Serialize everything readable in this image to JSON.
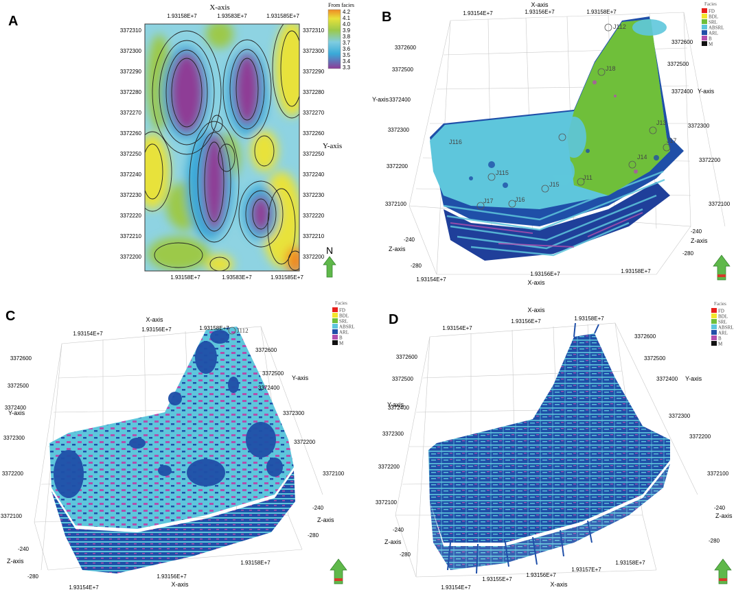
{
  "panels": {
    "A": {
      "label": "A",
      "x_axis_title": "X-axis",
      "y_axis_title": "Y-axis",
      "x_ticks": [
        "1.93158E+7",
        "1.93583E+7",
        "1.931585E+7"
      ],
      "y_ticks": [
        "3372310",
        "3372300",
        "3372290",
        "3372280",
        "3372270",
        "3372260",
        "3372250",
        "3372240",
        "3372230",
        "3372220",
        "3372210",
        "3372200"
      ],
      "legend_title": "From facies",
      "legend_values": [
        "4.2",
        "4.1",
        "4.0",
        "3.9",
        "3.8",
        "3.7",
        "3.6",
        "3.5",
        "3.4",
        "3.3"
      ],
      "north_label": "N",
      "colors": {
        "purple": "#8e3c96",
        "blue": "#39a9d8",
        "cyan": "#7fcde0",
        "green": "#9cc94a",
        "yellow": "#e8e23a",
        "orange": "#f08a24"
      }
    },
    "B": {
      "label": "B",
      "x_axis_title": "X-axis",
      "y_axis_title_left": "Y-axis",
      "y_axis_title_right": "Y-axis",
      "z_axis_title_left": "Z-axis",
      "z_axis_title_right": "Z-axis",
      "x_ticks_top": [
        "1.93154E+7",
        "1.93156E+7",
        "1.93158E+7"
      ],
      "x_ticks_bottom": [
        "1.93154E+7",
        "1.93156E+7",
        "1.93158E+7"
      ],
      "y_ticks_left": [
        "3372600",
        "3372500",
        "3372400",
        "3372300",
        "3372200",
        "3372100"
      ],
      "y_ticks_right": [
        "3372600",
        "3372500",
        "3372400",
        "3372300",
        "3372200",
        "3372100"
      ],
      "z_ticks_left": [
        "-240",
        "-280"
      ],
      "z_ticks_right": [
        "-240",
        "-280"
      ],
      "well_labels": [
        "J112",
        "J18",
        "J13",
        "J17",
        "J14",
        "J116",
        "J115",
        "J15",
        "J11",
        "J17",
        "J16"
      ],
      "legend_title": "Facies",
      "legend": [
        {
          "name": "FD",
          "color": "#e8201c"
        },
        {
          "name": "BDL",
          "color": "#f2e52c"
        },
        {
          "name": "SRL",
          "color": "#6fbf3a"
        },
        {
          "name": "ABSRL",
          "color": "#5ec6dc"
        },
        {
          "name": "ARL",
          "color": "#1f4fa8"
        },
        {
          "name": "B",
          "color": "#b04fae"
        },
        {
          "name": "M",
          "color": "#111111"
        }
      ]
    },
    "C": {
      "label": "C",
      "x_axis_title_top": "X-axis",
      "x_axis_title_bottom": "X-axis",
      "y_axis_title_left": "Y-axis",
      "y_axis_title_right": "Y-axis",
      "z_axis_title_left": "Z-axis",
      "z_axis_title_right": "Z-axis",
      "x_ticks_top": [
        "1.93154E+7",
        "1.93156E+7",
        "1.93158E+7"
      ],
      "x_ticks_bottom": [
        "1.93154E+7",
        "1.93156E+7",
        "1.93158E+7"
      ],
      "y_ticks_left": [
        "3372600",
        "3372500",
        "3372400",
        "3372300",
        "3372200",
        "3372100"
      ],
      "y_ticks_right": [
        "3372600",
        "3372500",
        "3372400",
        "3372300",
        "3372200",
        "3372100"
      ],
      "z_ticks_left": [
        "-240",
        "-280"
      ],
      "z_ticks_right": [
        "-240",
        "-280"
      ],
      "well_label": "J112",
      "legend_title": "Facies",
      "legend": [
        {
          "name": "FD",
          "color": "#e8201c"
        },
        {
          "name": "BDL",
          "color": "#f2e52c"
        },
        {
          "name": "SRL",
          "color": "#6fbf3a"
        },
        {
          "name": "ABSRL",
          "color": "#5ec6dc"
        },
        {
          "name": "ARL",
          "color": "#1f4fa8"
        },
        {
          "name": "B",
          "color": "#b04fae"
        },
        {
          "name": "M",
          "color": "#111111"
        }
      ]
    },
    "D": {
      "label": "D",
      "x_axis_title_top": "X-axis",
      "x_axis_title_bottom": "X-axis",
      "y_axis_title_left": "Y-axis",
      "y_axis_title_right": "Y-axis",
      "z_axis_title_left": "Z-axis",
      "z_axis_title_right": "Z-axis",
      "x_ticks_top": [
        "1.93154E+7",
        "1.93156E+7",
        "1.93158E+7"
      ],
      "x_ticks_bottom": [
        "1.93154E+7",
        "1.93155E+7",
        "1.93156E+7",
        "1.93157E+7",
        "1.93158E+7"
      ],
      "y_ticks_left": [
        "3372600",
        "3372500",
        "3372400",
        "3372300",
        "3372200",
        "3372100"
      ],
      "y_ticks_right": [
        "3372600",
        "3372500",
        "3372400",
        "3372300",
        "3372200",
        "3372100"
      ],
      "z_ticks_left": [
        "-240",
        "-280"
      ],
      "z_ticks_right": [
        "-240",
        "-280"
      ],
      "legend_title": "Facies",
      "legend": [
        {
          "name": "FD",
          "color": "#e8201c"
        },
        {
          "name": "BDL",
          "color": "#f2e52c"
        },
        {
          "name": "SRL",
          "color": "#6fbf3a"
        },
        {
          "name": "ABSRL",
          "color": "#5ec6dc"
        },
        {
          "name": "ARL",
          "color": "#1f4fa8"
        },
        {
          "name": "B",
          "color": "#b04fae"
        },
        {
          "name": "M",
          "color": "#111111"
        }
      ]
    }
  }
}
